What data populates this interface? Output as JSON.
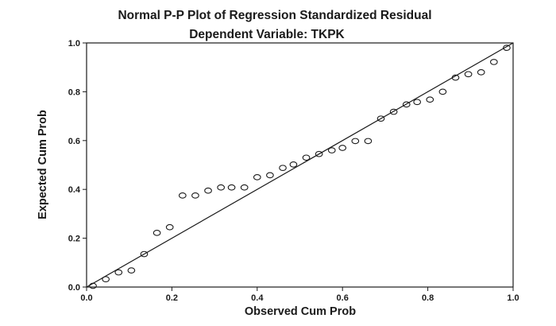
{
  "chart_data": {
    "type": "scatter",
    "title": "Normal P-P Plot of Regression Standardized Residual",
    "subtitle": "Dependent Variable: TKPK",
    "xlabel": "Observed Cum Prob",
    "ylabel": "Expected Cum Prob",
    "xlim": [
      0.0,
      1.0
    ],
    "ylim": [
      0.0,
      1.0
    ],
    "x_ticks": [
      "0.0",
      "0.2",
      "0.4",
      "0.6",
      "0.8",
      "1.0"
    ],
    "y_ticks": [
      "0.0",
      "0.2",
      "0.4",
      "0.6",
      "0.8",
      "1.0"
    ],
    "grid": false,
    "reference_line": [
      [
        0.0,
        0.0
      ],
      [
        1.0,
        1.0
      ]
    ],
    "marker": "hollow-circle",
    "points": [
      [
        0.015,
        0.005
      ],
      [
        0.045,
        0.032
      ],
      [
        0.075,
        0.06
      ],
      [
        0.105,
        0.068
      ],
      [
        0.135,
        0.135
      ],
      [
        0.165,
        0.222
      ],
      [
        0.195,
        0.245
      ],
      [
        0.225,
        0.375
      ],
      [
        0.255,
        0.375
      ],
      [
        0.285,
        0.395
      ],
      [
        0.315,
        0.408
      ],
      [
        0.34,
        0.408
      ],
      [
        0.37,
        0.408
      ],
      [
        0.4,
        0.45
      ],
      [
        0.43,
        0.458
      ],
      [
        0.46,
        0.488
      ],
      [
        0.485,
        0.502
      ],
      [
        0.515,
        0.53
      ],
      [
        0.545,
        0.545
      ],
      [
        0.575,
        0.56
      ],
      [
        0.6,
        0.57
      ],
      [
        0.63,
        0.598
      ],
      [
        0.66,
        0.598
      ],
      [
        0.69,
        0.69
      ],
      [
        0.72,
        0.718
      ],
      [
        0.75,
        0.748
      ],
      [
        0.775,
        0.758
      ],
      [
        0.805,
        0.768
      ],
      [
        0.835,
        0.8
      ],
      [
        0.865,
        0.858
      ],
      [
        0.895,
        0.872
      ],
      [
        0.925,
        0.88
      ],
      [
        0.955,
        0.922
      ],
      [
        0.985,
        0.98
      ]
    ]
  }
}
